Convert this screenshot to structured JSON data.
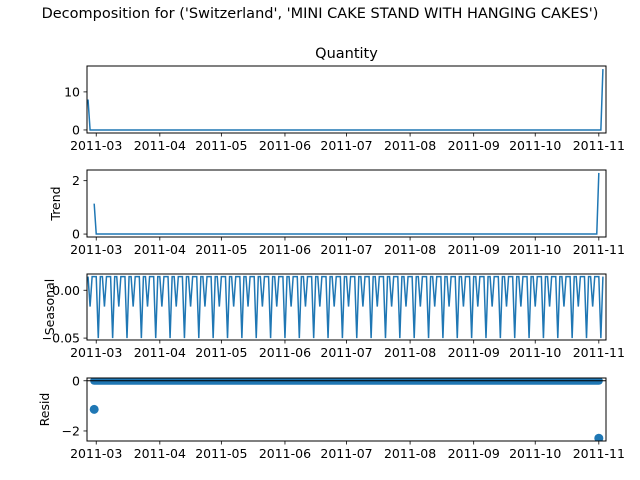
{
  "suptitle": "Decomposition for ('Switzerland', 'MINI CAKE STAND WITH HANGING CAKES')",
  "colors": {
    "line": "#1f77b4",
    "axis": "#000000",
    "background": "#ffffff"
  },
  "chart_data": [
    {
      "type": "line",
      "title": "Quantity",
      "ylabel": "",
      "x_ticks": [
        "2011-03",
        "2011-04",
        "2011-05",
        "2011-06",
        "2011-07",
        "2011-08",
        "2011-09",
        "2011-10",
        "2011-11"
      ],
      "y_ticks": [
        "0",
        "10"
      ],
      "ylim": [
        -0.8,
        16.8
      ],
      "series": [
        {
          "x": [
            "2011-02-25",
            "2011-02-26",
            "2011-11-02",
            "2011-11-03"
          ],
          "y": [
            8,
            0,
            0,
            16
          ]
        }
      ]
    },
    {
      "type": "line",
      "title": "",
      "ylabel": "Trend",
      "x_ticks": [
        "2011-03",
        "2011-04",
        "2011-05",
        "2011-06",
        "2011-07",
        "2011-08",
        "2011-09",
        "2011-10",
        "2011-11"
      ],
      "y_ticks": [
        "0",
        "2"
      ],
      "ylim": [
        -0.11,
        2.4
      ],
      "series": [
        {
          "x": [
            "2011-02-28",
            "2011-03-01",
            "2011-10-31",
            "2011-11-01"
          ],
          "y": [
            1.14,
            0,
            0,
            2.29
          ]
        }
      ]
    },
    {
      "type": "line",
      "title": "",
      "ylabel": "Seasonal",
      "x_ticks": [
        "2011-03",
        "2011-04",
        "2011-05",
        "2011-06",
        "2011-07",
        "2011-08",
        "2011-09",
        "2011-10",
        "2011-11"
      ],
      "y_ticks": [
        "0.00",
        "−0.05"
      ],
      "ylim": [
        -0.052,
        0.017
      ],
      "period_days": 7,
      "pattern": [
        0.0143,
        -0.0171,
        0.0143,
        0.0143,
        0.0143,
        -0.05,
        0.0143
      ],
      "series_range": [
        "2011-02-25",
        "2011-11-03"
      ]
    },
    {
      "type": "scatter",
      "title": "",
      "ylabel": "Resid",
      "x_ticks": [
        "2011-03",
        "2011-04",
        "2011-05",
        "2011-06",
        "2011-07",
        "2011-08",
        "2011-09",
        "2011-10",
        "2011-11"
      ],
      "y_ticks": [
        "0",
        "−2"
      ],
      "ylim": [
        -2.4,
        0.11
      ],
      "baseline": 0,
      "series_range": [
        "2011-02-28",
        "2011-11-01"
      ],
      "outliers": [
        {
          "x": "2011-02-28",
          "y": -1.14
        },
        {
          "x": "2011-11-01",
          "y": -2.29
        }
      ]
    }
  ]
}
